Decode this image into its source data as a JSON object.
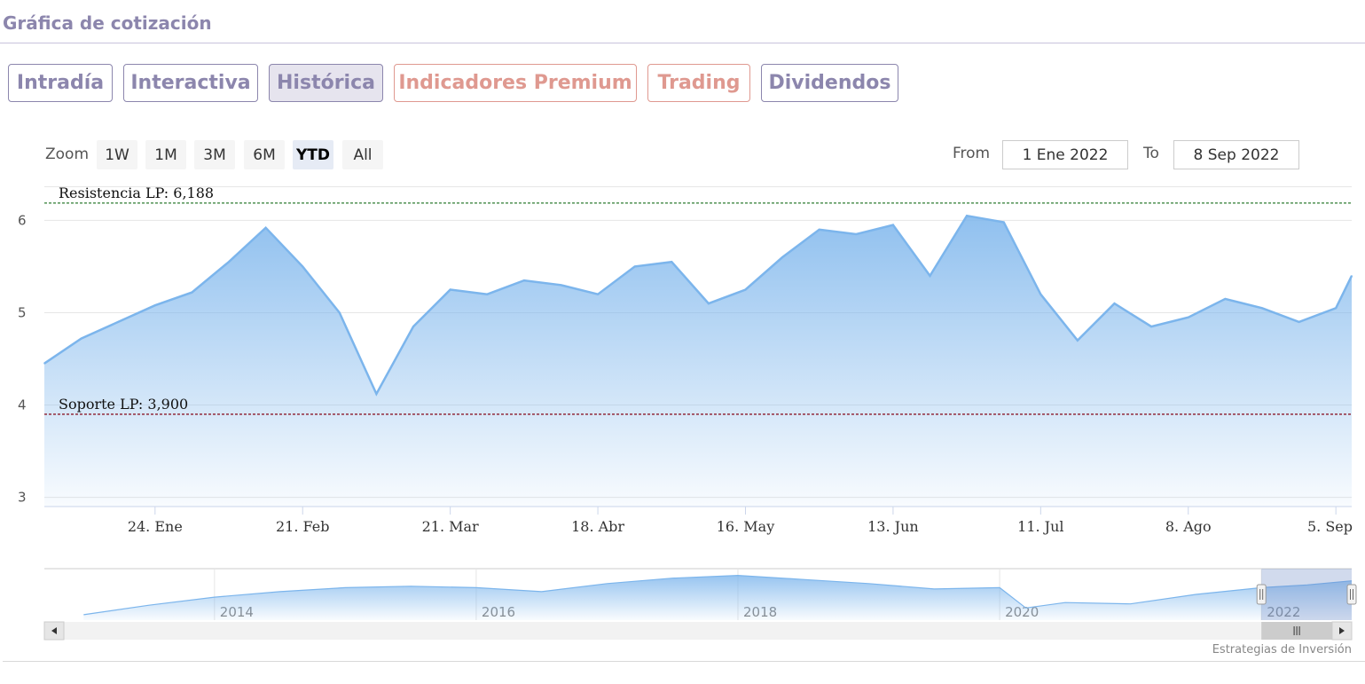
{
  "header": {
    "title": "Gráfica de cotización"
  },
  "tabs": [
    {
      "label": "Intradía",
      "style": "normal"
    },
    {
      "label": "Interactiva",
      "style": "normal"
    },
    {
      "label": "Histórica",
      "style": "active"
    },
    {
      "label": "Indicadores Premium",
      "style": "premium"
    },
    {
      "label": "Trading",
      "style": "premium"
    },
    {
      "label": "Dividendos",
      "style": "normal"
    }
  ],
  "range_selector": {
    "zoom_label": "Zoom",
    "buttons": [
      "1W",
      "1M",
      "3M",
      "6M",
      "YTD",
      "All"
    ],
    "selected": "YTD",
    "from_label": "From",
    "from_value": "1 Ene 2022",
    "to_label": "To",
    "to_value": "8 Sep 2022"
  },
  "chart_data": {
    "type": "area",
    "x_unit": "fecha 2022",
    "x": [
      "2022-01-03",
      "2022-01-10",
      "2022-01-17",
      "2022-01-24",
      "2022-01-31",
      "2022-02-07",
      "2022-02-14",
      "2022-02-21",
      "2022-02-28",
      "2022-03-07",
      "2022-03-14",
      "2022-03-21",
      "2022-03-28",
      "2022-04-04",
      "2022-04-11",
      "2022-04-18",
      "2022-04-25",
      "2022-05-02",
      "2022-05-09",
      "2022-05-16",
      "2022-05-23",
      "2022-05-30",
      "2022-06-06",
      "2022-06-13",
      "2022-06-20",
      "2022-06-27",
      "2022-07-04",
      "2022-07-11",
      "2022-07-18",
      "2022-07-25",
      "2022-08-01",
      "2022-08-08",
      "2022-08-15",
      "2022-08-22",
      "2022-08-29",
      "2022-09-05",
      "2022-09-08"
    ],
    "values": [
      4.45,
      4.72,
      4.9,
      5.08,
      5.22,
      5.55,
      5.92,
      5.5,
      5.0,
      4.12,
      4.85,
      5.25,
      5.2,
      5.35,
      5.3,
      5.2,
      5.5,
      5.55,
      5.1,
      5.25,
      5.6,
      5.9,
      5.85,
      5.95,
      5.4,
      6.05,
      5.98,
      5.2,
      4.7,
      5.1,
      4.85,
      4.95,
      5.15,
      5.05,
      4.9,
      5.05,
      5.4
    ],
    "y_ticks": [
      3,
      4,
      5,
      6
    ],
    "ylim": [
      2.9,
      6.35
    ],
    "x_ticks": [
      {
        "label": "24. Ene",
        "x": "2022-01-24"
      },
      {
        "label": "21. Feb",
        "x": "2022-02-21"
      },
      {
        "label": "21. Mar",
        "x": "2022-03-21"
      },
      {
        "label": "18. Abr",
        "x": "2022-04-18"
      },
      {
        "label": "16. May",
        "x": "2022-05-16"
      },
      {
        "label": "13. Jun",
        "x": "2022-06-13"
      },
      {
        "label": "11. Jul",
        "x": "2022-07-11"
      },
      {
        "label": "8. Ago",
        "x": "2022-08-08"
      },
      {
        "label": "5. Sep",
        "x": "2022-09-05"
      }
    ],
    "reference_lines": [
      {
        "label": "Resistencia LP: 6,188",
        "value": 6.188,
        "color": "#2e7d32"
      },
      {
        "label": "Soporte LP: 3,900",
        "value": 3.9,
        "color": "#8b1a2b"
      }
    ],
    "series_color": "#7cb5ec",
    "navigator": {
      "years": [
        "2014",
        "2016",
        "2018",
        "2020",
        "2022"
      ],
      "x": [
        2013.0,
        2013.5,
        2014.0,
        2014.5,
        2015.0,
        2015.5,
        2016.0,
        2016.5,
        2017.0,
        2017.5,
        2018.0,
        2018.5,
        2019.0,
        2019.5,
        2020.0,
        2020.2,
        2020.5,
        2021.0,
        2021.5,
        2022.0,
        2022.35,
        2022.69
      ],
      "values": [
        2.9,
        3.6,
        4.2,
        4.6,
        4.9,
        5.0,
        4.9,
        4.6,
        5.2,
        5.6,
        5.8,
        5.5,
        5.2,
        4.8,
        4.9,
        3.4,
        3.8,
        3.7,
        4.4,
        4.9,
        5.1,
        5.4
      ],
      "selected_range": [
        2022.0,
        2022.69
      ]
    }
  },
  "credit": "Estrategias de Inversión"
}
